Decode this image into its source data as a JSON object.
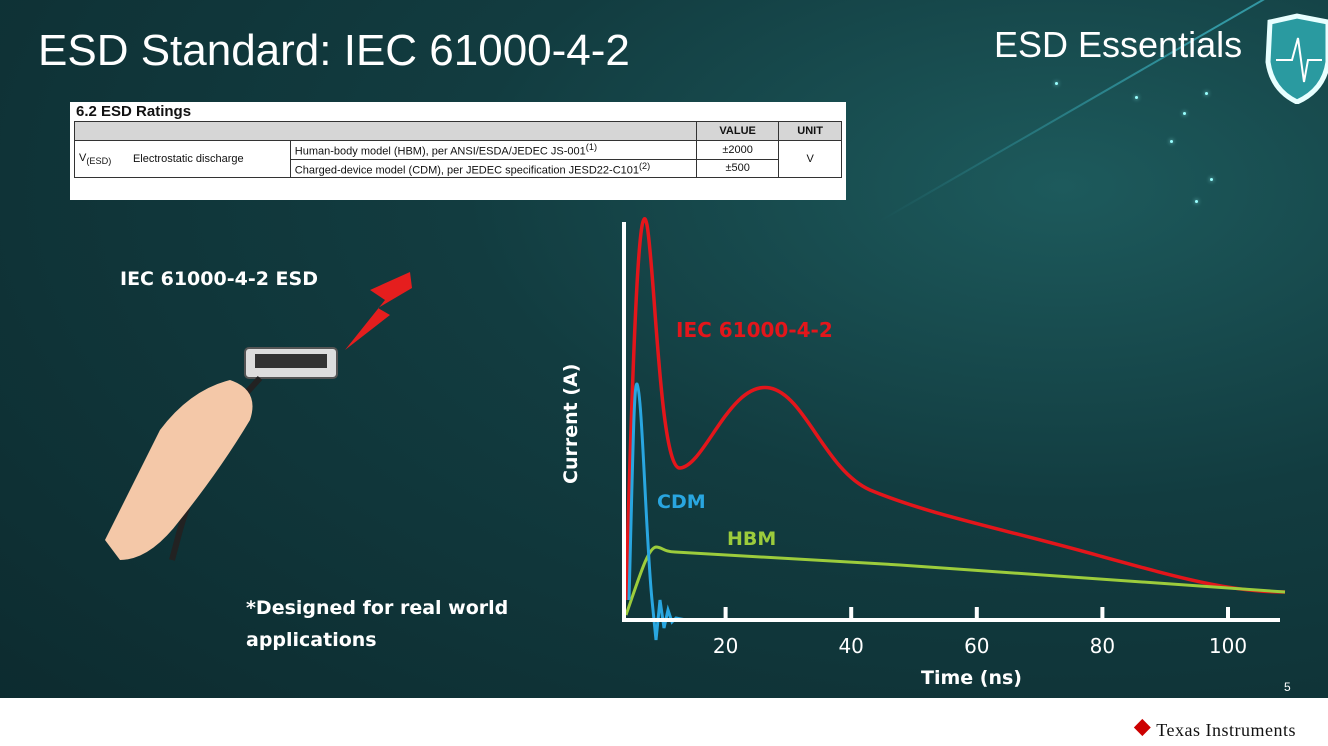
{
  "slide": {
    "title": "ESD Standard: IEC 61000-4-2",
    "brand": "ESD Essentials",
    "page_number": "5",
    "footer_logo": "Texas Instruments",
    "left_label": "IEC 61000-4-2 ESD",
    "note_line1": "*Designed for real world",
    "note_line2": "applications"
  },
  "table": {
    "heading": "6.2   ESD Ratings",
    "col_value": "VALUE",
    "col_unit": "UNIT",
    "symbol": "V",
    "symbol_sub": "(ESD)",
    "parameter": "Electrostatic discharge",
    "rows": [
      {
        "condition": "Human-body model (HBM), per ANSI/ESDA/JEDEC JS-001",
        "note": "(1)",
        "value": "±2000"
      },
      {
        "condition": "Charged-device model (CDM), per JEDEC specification JESD22-C101",
        "note": "(2)",
        "value": "±500"
      }
    ],
    "unit": "V"
  },
  "chart_data": {
    "type": "line",
    "xlabel": "Time (ns)",
    "ylabel": "Current (A)",
    "x_ticks": [
      "20",
      "40",
      "60",
      "80",
      "100"
    ],
    "series": [
      {
        "name": "IEC 61000-4-2",
        "color": "#e3161b"
      },
      {
        "name": "CDM",
        "color": "#29a6e0"
      },
      {
        "name": "HBM",
        "color": "#9ccc3c"
      }
    ]
  }
}
